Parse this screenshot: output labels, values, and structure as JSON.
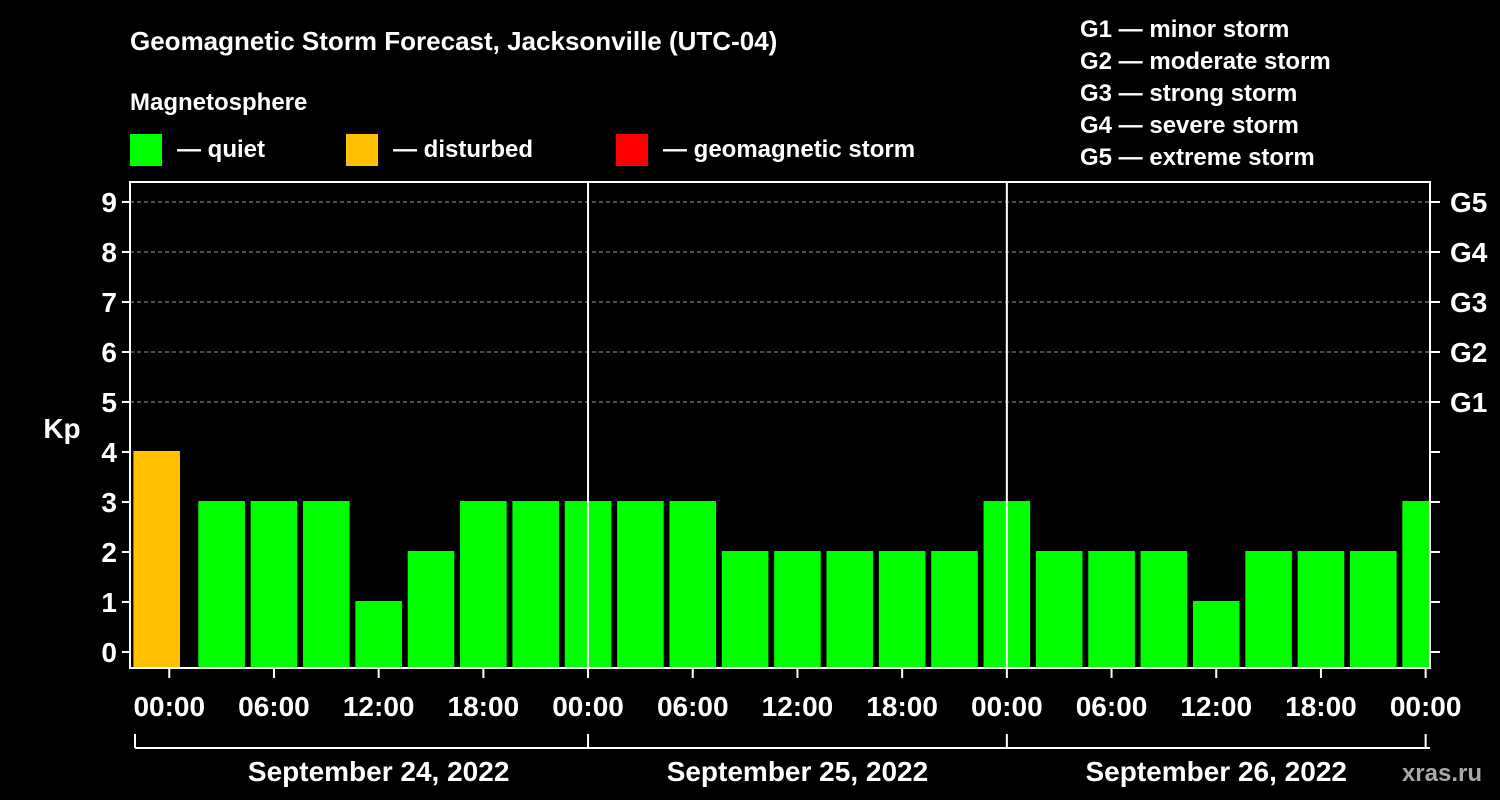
{
  "chart_data": {
    "type": "bar",
    "title": "Geomagnetic Storm Forecast, Jacksonville (UTC-04)",
    "legend_title": "Magnetosphere",
    "legend": [
      {
        "label": "— quiet",
        "color": "#00ff00"
      },
      {
        "label": "— disturbed",
        "color": "#ffc000"
      },
      {
        "label": "— geomagnetic storm",
        "color": "#ff0000"
      }
    ],
    "g_scale": [
      "G1 — minor storm",
      "G2 — moderate storm",
      "G3 — strong storm",
      "G4 — severe storm",
      "G5 — extreme storm"
    ],
    "ylabel": "Kp",
    "ylim": [
      0,
      9
    ],
    "yticks": [
      "0",
      "1",
      "2",
      "3",
      "4",
      "5",
      "6",
      "7",
      "8",
      "9"
    ],
    "right_ticks": [
      {
        "kp": 5,
        "label": "G1"
      },
      {
        "kp": 6,
        "label": "G2"
      },
      {
        "kp": 7,
        "label": "G3"
      },
      {
        "kp": 8,
        "label": "G4"
      },
      {
        "kp": 9,
        "label": "G5"
      }
    ],
    "xlim_hours": [
      -2.25,
      72.25
    ],
    "xticks": [
      {
        "hour": 0,
        "label": "00:00"
      },
      {
        "hour": 6,
        "label": "06:00"
      },
      {
        "hour": 12,
        "label": "12:00"
      },
      {
        "hour": 18,
        "label": "18:00"
      },
      {
        "hour": 24,
        "label": "00:00"
      },
      {
        "hour": 30,
        "label": "06:00"
      },
      {
        "hour": 36,
        "label": "12:00"
      },
      {
        "hour": 42,
        "label": "18:00"
      },
      {
        "hour": 48,
        "label": "00:00"
      },
      {
        "hour": 54,
        "label": "06:00"
      },
      {
        "hour": 60,
        "label": "12:00"
      },
      {
        "hour": 66,
        "label": "18:00"
      },
      {
        "hour": 72,
        "label": "00:00"
      }
    ],
    "day_dividers_hours": [
      24,
      48
    ],
    "days": [
      {
        "label": "September 24, 2022",
        "start": 0,
        "end": 24
      },
      {
        "label": "September 25, 2022",
        "start": 24,
        "end": 48
      },
      {
        "label": "September 26, 2022",
        "start": 48,
        "end": 72
      }
    ],
    "bar_width_hours": 2.67,
    "bars": [
      {
        "hour": -0.72,
        "value": 4,
        "color": "#ffc000"
      },
      {
        "hour": 3,
        "value": 3,
        "color": "#00ff00"
      },
      {
        "hour": 6,
        "value": 3,
        "color": "#00ff00"
      },
      {
        "hour": 9,
        "value": 3,
        "color": "#00ff00"
      },
      {
        "hour": 12,
        "value": 1,
        "color": "#00ff00"
      },
      {
        "hour": 15,
        "value": 2,
        "color": "#00ff00"
      },
      {
        "hour": 18,
        "value": 3,
        "color": "#00ff00"
      },
      {
        "hour": 21,
        "value": 3,
        "color": "#00ff00"
      },
      {
        "hour": 24,
        "value": 3,
        "color": "#00ff00"
      },
      {
        "hour": 27,
        "value": 3,
        "color": "#00ff00"
      },
      {
        "hour": 30,
        "value": 3,
        "color": "#00ff00"
      },
      {
        "hour": 33,
        "value": 2,
        "color": "#00ff00"
      },
      {
        "hour": 36,
        "value": 2,
        "color": "#00ff00"
      },
      {
        "hour": 39,
        "value": 2,
        "color": "#00ff00"
      },
      {
        "hour": 42,
        "value": 2,
        "color": "#00ff00"
      },
      {
        "hour": 45,
        "value": 2,
        "color": "#00ff00"
      },
      {
        "hour": 48,
        "value": 3,
        "color": "#00ff00"
      },
      {
        "hour": 51,
        "value": 2,
        "color": "#00ff00"
      },
      {
        "hour": 54,
        "value": 2,
        "color": "#00ff00"
      },
      {
        "hour": 57,
        "value": 2,
        "color": "#00ff00"
      },
      {
        "hour": 60,
        "value": 1,
        "color": "#00ff00"
      },
      {
        "hour": 63,
        "value": 2,
        "color": "#00ff00"
      },
      {
        "hour": 66,
        "value": 2,
        "color": "#00ff00"
      },
      {
        "hour": 69,
        "value": 2,
        "color": "#00ff00"
      },
      {
        "hour": 72,
        "value": 3,
        "color": "#00ff00"
      }
    ],
    "watermark": "xras.ru"
  }
}
